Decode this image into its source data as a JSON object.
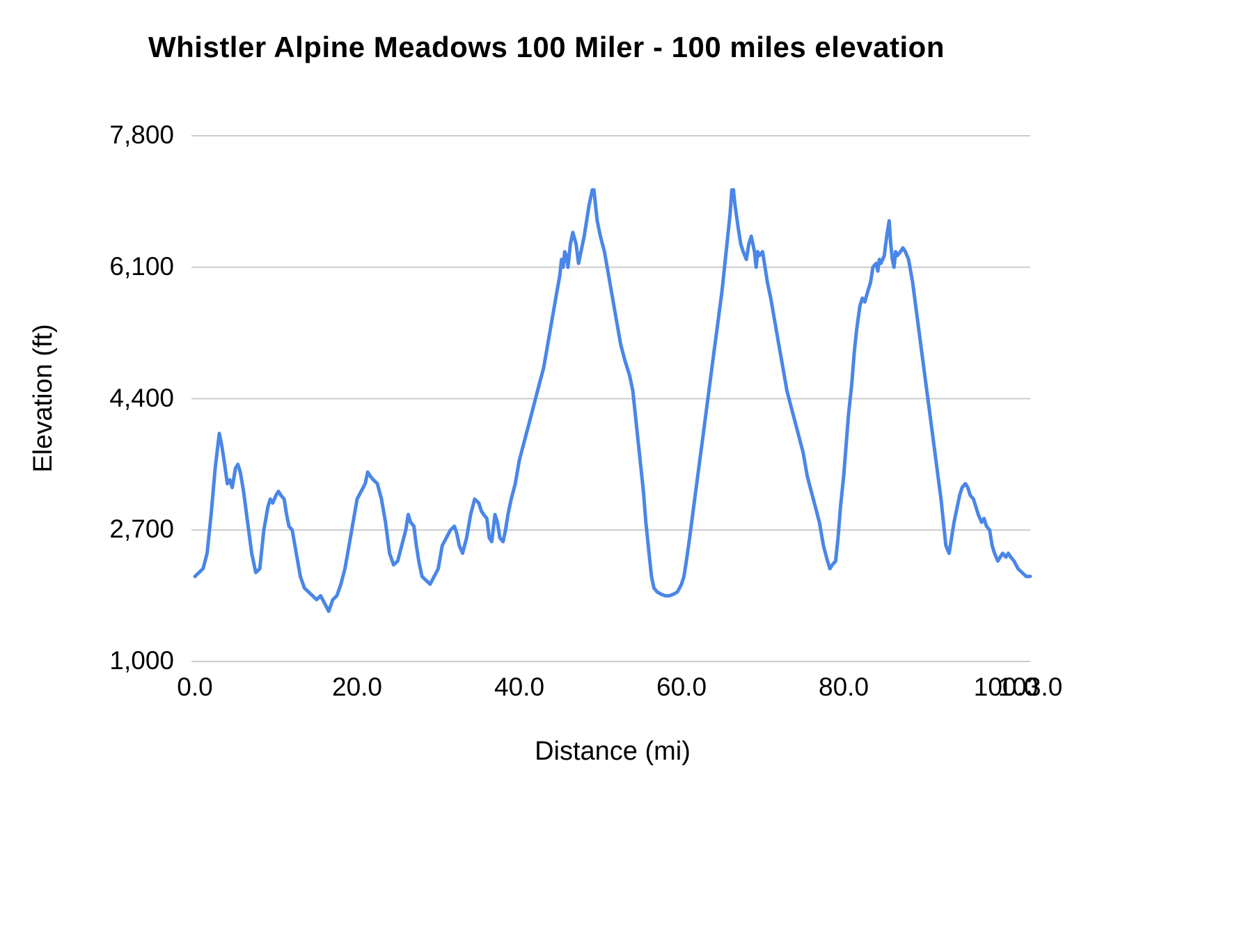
{
  "title": "Whistler Alpine Meadows 100 Miler - 100 miles elevation",
  "chart_data": {
    "type": "line",
    "title": "Whistler Alpine Meadows 100 Miler - 100 miles elevation",
    "xlabel": "Distance (mi)",
    "ylabel": "Elevation (ft)",
    "legend": "none",
    "grid": "horizontal",
    "line_color": "#4a86e8",
    "grid_color": "#cccccc",
    "xlim": [
      0,
      103
    ],
    "ylim": [
      1000,
      7800
    ],
    "y_ticks": [
      1000,
      2700,
      4400,
      6100,
      7800
    ],
    "y_tick_labels": [
      "1,000",
      "2,700",
      "4,400",
      "6,100",
      "7,800"
    ],
    "x_ticks": [
      0,
      20,
      40,
      60,
      80,
      100,
      103
    ],
    "x_tick_labels": [
      "0.0",
      "20.0",
      "40.0",
      "60.0",
      "80.0",
      "100.0",
      "103.0"
    ],
    "series_name": "elevation",
    "x": [
      0,
      0.5,
      1,
      1.5,
      2,
      2.5,
      3,
      3.3,
      3.6,
      4,
      4.3,
      4.6,
      5,
      5.3,
      5.6,
      6,
      6.5,
      7,
      7.5,
      8,
      8.5,
      9,
      9.3,
      9.6,
      10,
      10.3,
      10.6,
      11,
      11.3,
      11.6,
      12,
      12.5,
      13,
      13.5,
      14,
      14.5,
      15,
      15.5,
      16,
      16.5,
      17,
      17.5,
      18,
      18.5,
      19,
      19.5,
      20,
      20.5,
      21,
      21.3,
      21.6,
      22,
      22.5,
      23,
      23.5,
      24,
      24.5,
      25,
      25.5,
      26,
      26.3,
      26.6,
      27,
      27.3,
      27.6,
      28,
      28.5,
      29,
      29.5,
      30,
      30.5,
      31,
      31.5,
      32,
      32.3,
      32.6,
      33,
      33.5,
      34,
      34.5,
      35,
      35.3,
      35.6,
      36,
      36.3,
      36.6,
      37,
      37.3,
      37.6,
      38,
      38.3,
      38.6,
      39,
      39.5,
      40,
      40.5,
      41,
      41.5,
      42,
      42.5,
      43,
      43.5,
      44,
      44.5,
      45,
      45.2,
      45.4,
      45.6,
      45.8,
      46,
      46.3,
      46.6,
      47,
      47.3,
      47.6,
      48,
      48.3,
      48.6,
      49,
      49.2,
      49.4,
      49.6,
      50,
      50.5,
      51,
      51.5,
      52,
      52.5,
      53,
      53.3,
      53.6,
      54,
      54.3,
      54.6,
      55,
      55.3,
      55.6,
      56,
      56.3,
      56.6,
      57,
      57.5,
      58,
      58.5,
      59,
      59.5,
      60,
      60.3,
      60.6,
      61,
      61.5,
      62,
      62.5,
      63,
      63.5,
      64,
      64.5,
      65,
      65.3,
      65.6,
      66,
      66.2,
      66.4,
      66.6,
      67,
      67.3,
      67.6,
      68,
      68.3,
      68.6,
      69,
      69.2,
      69.4,
      69.6,
      70,
      70.3,
      70.6,
      71,
      71.5,
      72,
      72.5,
      73,
      73.5,
      74,
      74.5,
      75,
      75.5,
      76,
      76.5,
      77,
      77.5,
      78,
      78.3,
      78.6,
      79,
      79.3,
      79.6,
      80,
      80.3,
      80.6,
      81,
      81.3,
      81.6,
      82,
      82.3,
      82.6,
      83,
      83.3,
      83.6,
      84,
      84.2,
      84.4,
      84.6,
      85,
      85.3,
      85.6,
      85.8,
      86,
      86.2,
      86.4,
      86.6,
      87,
      87.3,
      87.6,
      88,
      88.5,
      89,
      89.5,
      90,
      90.5,
      91,
      91.5,
      92,
      92.3,
      92.6,
      93,
      93.3,
      93.6,
      94,
      94.3,
      94.6,
      95,
      95.3,
      95.6,
      96,
      96.3,
      96.6,
      97,
      97.3,
      97.6,
      98,
      98.3,
      98.6,
      99,
      99.3,
      99.6,
      100,
      100.3,
      100.6,
      101,
      101.5,
      102,
      102.5,
      103
    ],
    "y": [
      2100,
      2150,
      2200,
      2400,
      2900,
      3500,
      3950,
      3800,
      3600,
      3300,
      3350,
      3250,
      3500,
      3550,
      3450,
      3200,
      2800,
      2400,
      2150,
      2200,
      2700,
      3000,
      3100,
      3050,
      3150,
      3200,
      3150,
      3100,
      2900,
      2750,
      2700,
      2400,
      2100,
      1950,
      1900,
      1850,
      1800,
      1850,
      1750,
      1650,
      1800,
      1850,
      2000,
      2200,
      2500,
      2800,
      3100,
      3200,
      3300,
      3450,
      3400,
      3350,
      3300,
      3100,
      2800,
      2400,
      2250,
      2300,
      2500,
      2700,
      2900,
      2800,
      2750,
      2500,
      2300,
      2100,
      2050,
      2000,
      2100,
      2200,
      2500,
      2600,
      2700,
      2750,
      2650,
      2500,
      2400,
      2600,
      2900,
      3100,
      3050,
      2950,
      2900,
      2850,
      2600,
      2550,
      2900,
      2800,
      2600,
      2550,
      2700,
      2900,
      3100,
      3300,
      3600,
      3800,
      4000,
      4200,
      4400,
      4600,
      4800,
      5100,
      5400,
      5700,
      6000,
      6200,
      6100,
      6300,
      6250,
      6100,
      6400,
      6550,
      6400,
      6150,
      6300,
      6500,
      6700,
      6900,
      7100,
      7100,
      6900,
      6700,
      6500,
      6300,
      6000,
      5700,
      5400,
      5100,
      4900,
      4800,
      4700,
      4500,
      4200,
      3900,
      3500,
      3200,
      2800,
      2400,
      2100,
      1950,
      1900,
      1870,
      1850,
      1850,
      1870,
      1900,
      2000,
      2100,
      2300,
      2600,
      3000,
      3400,
      3800,
      4200,
      4600,
      5000,
      5400,
      5800,
      6100,
      6400,
      6800,
      7100,
      7100,
      6900,
      6600,
      6400,
      6300,
      6200,
      6400,
      6500,
      6300,
      6100,
      6300,
      6250,
      6300,
      6100,
      5900,
      5700,
      5400,
      5100,
      4800,
      4500,
      4300,
      4100,
      3900,
      3700,
      3400,
      3200,
      3000,
      2800,
      2500,
      2300,
      2200,
      2250,
      2300,
      2600,
      3000,
      3400,
      3800,
      4200,
      4600,
      5000,
      5300,
      5600,
      5700,
      5650,
      5800,
      5900,
      6100,
      6150,
      6050,
      6200,
      6150,
      6250,
      6500,
      6700,
      6400,
      6200,
      6100,
      6300,
      6250,
      6300,
      6350,
      6300,
      6200,
      5900,
      5500,
      5100,
      4700,
      4300,
      3900,
      3500,
      3100,
      2800,
      2500,
      2400,
      2600,
      2800,
      3000,
      3150,
      3250,
      3300,
      3250,
      3150,
      3100,
      3000,
      2900,
      2800,
      2850,
      2750,
      2700,
      2500,
      2400,
      2300,
      2350,
      2400,
      2350,
      2400,
      2350,
      2300,
      2200,
      2150,
      2100,
      2100
    ]
  }
}
